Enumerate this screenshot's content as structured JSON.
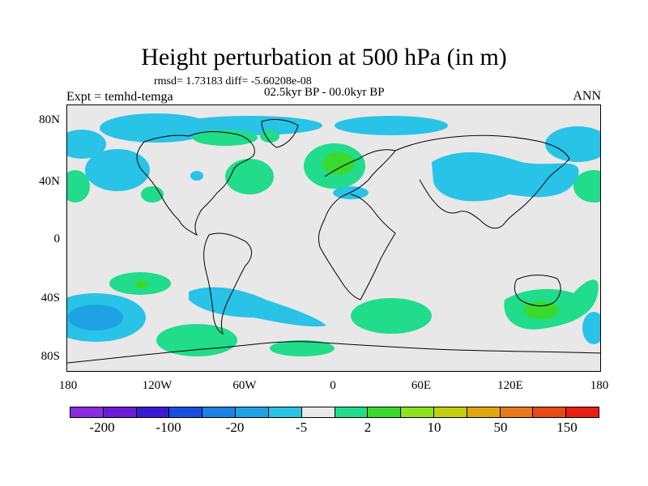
{
  "title": "Height perturbation at 500 hPa (in m)",
  "stats": "rmsd= 1.73183 diff= -5.60208e-08",
  "experiment": "Expt = temhd-temga",
  "period": "02.5kyr BP - 00.0kyr BP",
  "season": "ANN",
  "lat_labels": [
    "80N",
    "40N",
    "0",
    "40S",
    "80S"
  ],
  "lon_labels": [
    "180",
    "120W",
    "60W",
    "0",
    "60E",
    "120E",
    "180"
  ],
  "colorbar": {
    "colors": [
      "#8a2be2",
      "#6a1cd8",
      "#3b1bd0",
      "#1c4fe0",
      "#1e7fe6",
      "#1fa2e4",
      "#28c3e6",
      "#e8e8e8",
      "#21dc8a",
      "#3ad92e",
      "#8ee21c",
      "#c2cf10",
      "#e0a80d",
      "#e8781c",
      "#e84a14",
      "#e81e12"
    ],
    "labels": [
      "-200",
      "-100",
      "-20",
      "-5",
      "2",
      "10",
      "50",
      "150"
    ]
  },
  "map_colors": {
    "background": "#e8e8e8",
    "neg_light": "#28c3e6",
    "neg_mid": "#1fa2e4",
    "pos_light": "#21dc8a",
    "pos_mid": "#3ad92e"
  }
}
